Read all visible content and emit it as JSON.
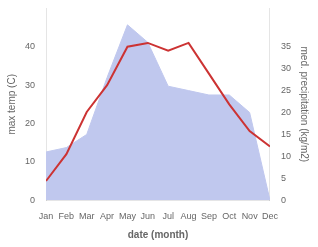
{
  "chart_data": {
    "type": "line",
    "xlabel": "date (month)",
    "ylabel": "max temp (C)",
    "y2label": "med. precipitation (kg/m2)",
    "categories": [
      "Jan",
      "Feb",
      "Mar",
      "Apr",
      "May",
      "Jun",
      "Jul",
      "Aug",
      "Sep",
      "Oct",
      "Nov",
      "Dec"
    ],
    "series": [
      {
        "type": "line",
        "color": "#cc3333",
        "values": [
          5,
          12,
          23,
          30,
          40,
          41,
          39,
          41,
          33,
          25,
          18,
          14
        ]
      },
      {
        "type": "area",
        "axis": "y2",
        "color": "#c0c8ee",
        "values": [
          11,
          12,
          15,
          28,
          40,
          36,
          26,
          25,
          24,
          24,
          20,
          0
        ]
      }
    ],
    "ylim": [
      0,
      50
    ],
    "yticks": [
      0,
      10,
      20,
      30,
      40
    ],
    "y2lim": [
      0,
      43.75
    ],
    "y2ticks": [
      0,
      5,
      10,
      15,
      20,
      25,
      30,
      35
    ],
    "grid": false
  }
}
